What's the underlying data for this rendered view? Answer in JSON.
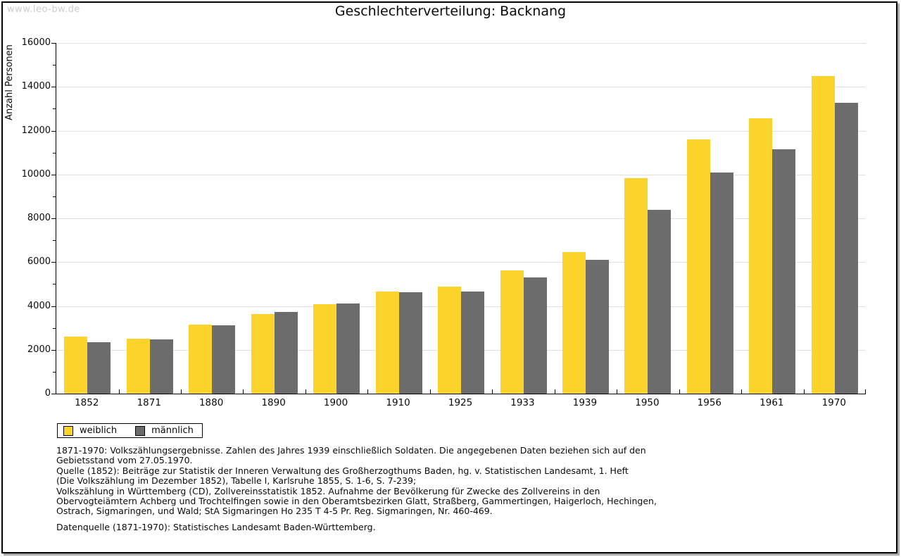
{
  "watermark": "www.leo-bw.de",
  "title": "Geschlechterverteilung: Backnang",
  "chart_data": {
    "type": "bar",
    "title": "Geschlechterverteilung: Backnang",
    "xlabel": "",
    "ylabel": "Anzahl Personen",
    "categories": [
      "1852",
      "1871",
      "1880",
      "1890",
      "1900",
      "1910",
      "1925",
      "1933",
      "1939",
      "1950",
      "1956",
      "1961",
      "1970"
    ],
    "series": [
      {
        "name": "weiblich",
        "color": "#FCD32B",
        "values": [
          2600,
          2500,
          3160,
          3620,
          4090,
          4650,
          4870,
          5620,
          6450,
          9820,
          11600,
          12550,
          14500
        ]
      },
      {
        "name": "männlich",
        "color": "#6C6C6C",
        "values": [
          2340,
          2480,
          3120,
          3720,
          4100,
          4640,
          4650,
          5300,
          6100,
          8390,
          10100,
          11150,
          13270
        ]
      }
    ],
    "ylim": [
      0,
      16000
    ],
    "ytick_major": 2000,
    "ytick_minor": 1000,
    "grid": "horizontal-major",
    "gridline_color": "#E0E0E0",
    "legend_position": "bottom-left"
  },
  "footnotes": {
    "lines": [
      "1871-1970: Volkszählungsergebnisse. Zahlen des Jahres 1939 einschließlich Soldaten. Die angegebenen Daten beziehen sich auf den",
      "Gebietsstand vom 27.05.1970.",
      "Quelle (1852): Beiträge zur Statistik der Inneren Verwaltung des Großherzogthums Baden, hg. v. Statistischen Landesamt, 1. Heft",
      "(Die Volkszählung im Dezember 1852), Tabelle I, Karlsruhe 1855, S. 1-6, S. 7-239;",
      "Volkszählung in Württemberg (CD), Zollvereinsstatistik 1852. Aufnahme der Bevölkerung für Zwecke des Zollvereins in den",
      "Obervogteiämtern Achberg und Trochtelfingen sowie in den Oberamtsbezirken Glatt, Straßberg, Gammertingen, Haigerloch, Hechingen,",
      "Ostrach, Sigmaringen, und Wald; StA Sigmaringen Ho 235 T 4-5 Pr. Reg. Sigmaringen, Nr. 460-469."
    ],
    "datasource": "Datenquelle (1871-1970): Statistisches Landesamt Baden-Württemberg."
  }
}
